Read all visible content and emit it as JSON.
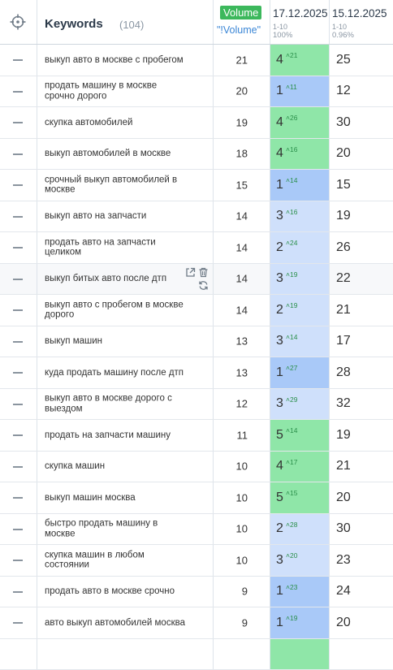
{
  "header": {
    "keywords_label": "Keywords",
    "keywords_count": "(104)",
    "volume_label": "Volume",
    "volume_sub": "\"!Volume\"",
    "date1": {
      "date": "17.12.2025",
      "range": "1-10",
      "pct": "100%"
    },
    "date2": {
      "date": "15.12.2025",
      "range": "1-10",
      "pct": "0.96%"
    }
  },
  "colors": {
    "green": "#8fe6a8",
    "light_blue": "#cfe0fb",
    "blue": "#a9c9f8",
    "volume_badge": "#3cb85c"
  },
  "rows": [
    {
      "keyword": "выкуп авто в москве с пробегом",
      "volume": "21",
      "pos1": "4",
      "chg": "21",
      "pos2": "25",
      "level": "green"
    },
    {
      "keyword": "продать машину в москве срочно дорого",
      "volume": "20",
      "pos1": "1",
      "chg": "11",
      "pos2": "12",
      "level": "blue"
    },
    {
      "keyword": "скупка автомобилей",
      "volume": "19",
      "pos1": "4",
      "chg": "26",
      "pos2": "30",
      "level": "green"
    },
    {
      "keyword": "выкуп автомобилей в москве",
      "volume": "18",
      "pos1": "4",
      "chg": "16",
      "pos2": "20",
      "level": "green"
    },
    {
      "keyword": "срочный выкуп автомобилей в москве",
      "volume": "15",
      "pos1": "1",
      "chg": "14",
      "pos2": "15",
      "level": "blue"
    },
    {
      "keyword": "выкуп авто на запчасти",
      "volume": "14",
      "pos1": "3",
      "chg": "16",
      "pos2": "19",
      "level": "light_blue"
    },
    {
      "keyword": "продать авто на запчасти целиком",
      "volume": "14",
      "pos1": "2",
      "chg": "24",
      "pos2": "26",
      "level": "light_blue"
    },
    {
      "keyword": "выкуп битых авто после дтп",
      "volume": "14",
      "pos1": "3",
      "chg": "19",
      "pos2": "22",
      "level": "light_blue",
      "hover": true
    },
    {
      "keyword": "выкуп авто с пробегом в москве дорого",
      "volume": "14",
      "pos1": "2",
      "chg": "19",
      "pos2": "21",
      "level": "light_blue"
    },
    {
      "keyword": "выкуп машин",
      "volume": "13",
      "pos1": "3",
      "chg": "14",
      "pos2": "17",
      "level": "light_blue"
    },
    {
      "keyword": "куда продать машину после дтп",
      "volume": "13",
      "pos1": "1",
      "chg": "27",
      "pos2": "28",
      "level": "blue"
    },
    {
      "keyword": "выкуп авто в москве дорого с выездом",
      "volume": "12",
      "pos1": "3",
      "chg": "29",
      "pos2": "32",
      "level": "light_blue"
    },
    {
      "keyword": "продать на запчасти машину",
      "volume": "11",
      "pos1": "5",
      "chg": "14",
      "pos2": "19",
      "level": "green"
    },
    {
      "keyword": "скупка машин",
      "volume": "10",
      "pos1": "4",
      "chg": "17",
      "pos2": "21",
      "level": "green"
    },
    {
      "keyword": "выкуп машин москва",
      "volume": "10",
      "pos1": "5",
      "chg": "15",
      "pos2": "20",
      "level": "green"
    },
    {
      "keyword": "быстро продать машину в москве",
      "volume": "10",
      "pos1": "2",
      "chg": "28",
      "pos2": "30",
      "level": "light_blue"
    },
    {
      "keyword": "скупка машин в любом состоянии",
      "volume": "10",
      "pos1": "3",
      "chg": "20",
      "pos2": "23",
      "level": "light_blue"
    },
    {
      "keyword": "продать авто в москве срочно",
      "volume": "9",
      "pos1": "1",
      "chg": "23",
      "pos2": "24",
      "level": "blue"
    },
    {
      "keyword": "авто выкуп автомобилей москва",
      "volume": "9",
      "pos1": "1",
      "chg": "19",
      "pos2": "20",
      "level": "blue"
    }
  ]
}
